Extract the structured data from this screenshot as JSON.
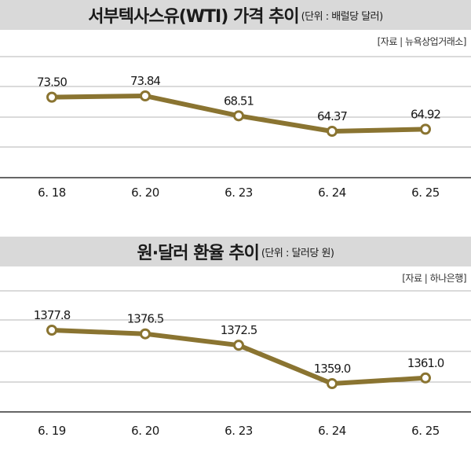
{
  "chart_data": [
    {
      "type": "line",
      "title": "서부텍사스유(WTI) 가격 추이",
      "unit": "(단위 : 배럴당 달러)",
      "source": "[자료 | 뉴욕상업거래소]",
      "categories": [
        "6. 18",
        "6. 20",
        "6. 23",
        "6. 24",
        "6. 25"
      ],
      "values": [
        73.5,
        73.84,
        68.51,
        64.37,
        64.92
      ],
      "labels": [
        "73.50",
        "73.84",
        "68.51",
        "64.37",
        "64.92"
      ],
      "line_color": "#8a7431",
      "grid": true
    },
    {
      "type": "line",
      "title": "원·달러 환율 추이",
      "unit": "(단위 : 달러당 원)",
      "source": "[자료 | 하나은행]",
      "categories": [
        "6. 19",
        "6. 20",
        "6. 23",
        "6. 24",
        "6. 25"
      ],
      "values": [
        1377.8,
        1376.5,
        1372.5,
        1359.0,
        1361.0
      ],
      "labels": [
        "1377.8",
        "1376.5",
        "1372.5",
        "1359.0",
        "1361.0"
      ],
      "line_color": "#8a7431",
      "grid": true
    }
  ]
}
